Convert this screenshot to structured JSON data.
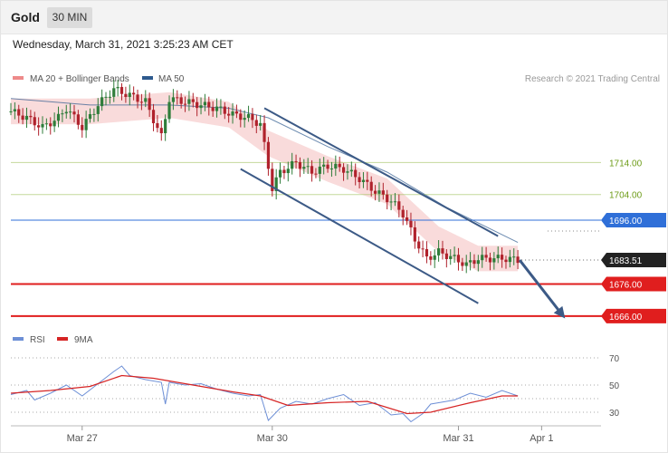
{
  "header": {
    "instrument": "Gold",
    "timeframe": "30 MIN",
    "timestamp": "Wednesday, March 31, 2021 3:25:23 AM CET"
  },
  "colors": {
    "up_candle": "#2f7d3a",
    "down_candle": "#b0222c",
    "bollinger_band": "#f7cfcf",
    "ma20_legend": "#ee8a8a",
    "ma50": "#2e5a8e",
    "resistance": "#9ec25a",
    "pivot": "#2f6fd8",
    "support": "#e01e1e",
    "price_tag": "#222222",
    "rsi": "#6d8fd6",
    "rsi_ma": "#d62424"
  },
  "chart_data": [
    {
      "type": "candlestick",
      "legend": [
        {
          "name": "MA 20 + Bollinger Bands",
          "color": "#ee8a8a"
        },
        {
          "name": "MA 50",
          "color": "#2e5a8e"
        }
      ],
      "credit": "Research © 2021 Trading Central",
      "ylim": [
        1660,
        1745
      ],
      "x_ticks": [
        {
          "label": "Mar 27",
          "x": 18
        },
        {
          "label": "Mar 30",
          "x": 66
        },
        {
          "label": "Mar 31",
          "x": 113
        },
        {
          "label": "Apr 1",
          "x": 134
        }
      ],
      "x_range": [
        0,
        149
      ],
      "last_price": 1683.51,
      "levels": [
        {
          "label": "1714.00",
          "value": 1714.0,
          "role": "resistance"
        },
        {
          "label": "1704.00",
          "value": 1704.0,
          "role": "resistance"
        },
        {
          "label": "1696.00",
          "value": 1696.0,
          "role": "pivot"
        },
        {
          "label": "1683.51",
          "value": 1683.51,
          "role": "last"
        },
        {
          "label": "1676.00",
          "value": 1676.0,
          "role": "support"
        },
        {
          "label": "1666.00",
          "value": 1666.0,
          "role": "support"
        }
      ],
      "close_path": [
        [
          0,
          1730
        ],
        [
          4,
          1728
        ],
        [
          8,
          1725
        ],
        [
          12,
          1728
        ],
        [
          14,
          1731
        ],
        [
          18,
          1725
        ],
        [
          22,
          1732
        ],
        [
          26,
          1737
        ],
        [
          30,
          1735
        ],
        [
          34,
          1733
        ],
        [
          38,
          1722
        ],
        [
          40,
          1734
        ],
        [
          44,
          1733
        ],
        [
          48,
          1732
        ],
        [
          52,
          1731
        ],
        [
          56,
          1729
        ],
        [
          60,
          1728
        ],
        [
          63,
          1726
        ],
        [
          66,
          1706
        ],
        [
          68,
          1711
        ],
        [
          72,
          1714
        ],
        [
          76,
          1711
        ],
        [
          80,
          1713
        ],
        [
          84,
          1712
        ],
        [
          88,
          1709
        ],
        [
          92,
          1705
        ],
        [
          96,
          1702
        ],
        [
          99,
          1698
        ],
        [
          102,
          1690
        ],
        [
          105,
          1684
        ],
        [
          108,
          1686
        ],
        [
          112,
          1684
        ],
        [
          115,
          1682
        ],
        [
          118,
          1684
        ],
        [
          122,
          1684
        ],
        [
          125,
          1684
        ],
        [
          128,
          1683.51
        ]
      ],
      "ma50_path": [
        [
          0,
          1734
        ],
        [
          20,
          1732
        ],
        [
          40,
          1732
        ],
        [
          55,
          1731
        ],
        [
          65,
          1728
        ],
        [
          80,
          1719
        ],
        [
          95,
          1711
        ],
        [
          110,
          1700
        ],
        [
          128,
          1689
        ]
      ],
      "bollinger_path": [
        [
          0,
          1730
        ],
        [
          20,
          1730
        ],
        [
          40,
          1732
        ],
        [
          55,
          1729
        ],
        [
          65,
          1720
        ],
        [
          80,
          1712
        ],
        [
          95,
          1705
        ],
        [
          108,
          1690
        ],
        [
          118,
          1684
        ],
        [
          128,
          1684
        ]
      ],
      "channel_lines": [
        {
          "from": [
            64,
            1731
          ],
          "to": [
            123,
            1691
          ]
        },
        {
          "from": [
            58,
            1712
          ],
          "to": [
            118,
            1670
          ]
        }
      ],
      "forecast_arrow": {
        "from": [
          128,
          1683.51
        ],
        "to": [
          140,
          1666
        ]
      }
    },
    {
      "type": "line",
      "legend": [
        {
          "name": "RSI",
          "color": "#6d8fd6"
        },
        {
          "name": "9MA",
          "color": "#d62424"
        }
      ],
      "ylim": [
        20,
        80
      ],
      "y_ticks": [
        70,
        50,
        30
      ],
      "rsi": [
        [
          0,
          43
        ],
        [
          4,
          46
        ],
        [
          6,
          39
        ],
        [
          10,
          44
        ],
        [
          14,
          50
        ],
        [
          18,
          42
        ],
        [
          22,
          51
        ],
        [
          26,
          60
        ],
        [
          28,
          64
        ],
        [
          30,
          57
        ],
        [
          34,
          54
        ],
        [
          38,
          52
        ],
        [
          39,
          36
        ],
        [
          40,
          52
        ],
        [
          44,
          50
        ],
        [
          48,
          51
        ],
        [
          52,
          47
        ],
        [
          56,
          44
        ],
        [
          60,
          42
        ],
        [
          63,
          43
        ],
        [
          65,
          24
        ],
        [
          68,
          33
        ],
        [
          72,
          38
        ],
        [
          76,
          36
        ],
        [
          80,
          40
        ],
        [
          84,
          43
        ],
        [
          88,
          35
        ],
        [
          92,
          37
        ],
        [
          96,
          28
        ],
        [
          99,
          29
        ],
        [
          101,
          23
        ],
        [
          104,
          29
        ],
        [
          106,
          36
        ],
        [
          108,
          37
        ],
        [
          112,
          39
        ],
        [
          116,
          44
        ],
        [
          120,
          41
        ],
        [
          124,
          46
        ],
        [
          128,
          42
        ]
      ],
      "rsi_ma": [
        [
          0,
          44
        ],
        [
          10,
          46
        ],
        [
          20,
          49
        ],
        [
          28,
          57
        ],
        [
          36,
          55
        ],
        [
          46,
          50
        ],
        [
          56,
          45
        ],
        [
          63,
          42
        ],
        [
          70,
          35
        ],
        [
          80,
          37
        ],
        [
          90,
          38
        ],
        [
          100,
          29
        ],
        [
          106,
          30
        ],
        [
          116,
          37
        ],
        [
          124,
          42
        ],
        [
          128,
          42
        ]
      ]
    }
  ]
}
